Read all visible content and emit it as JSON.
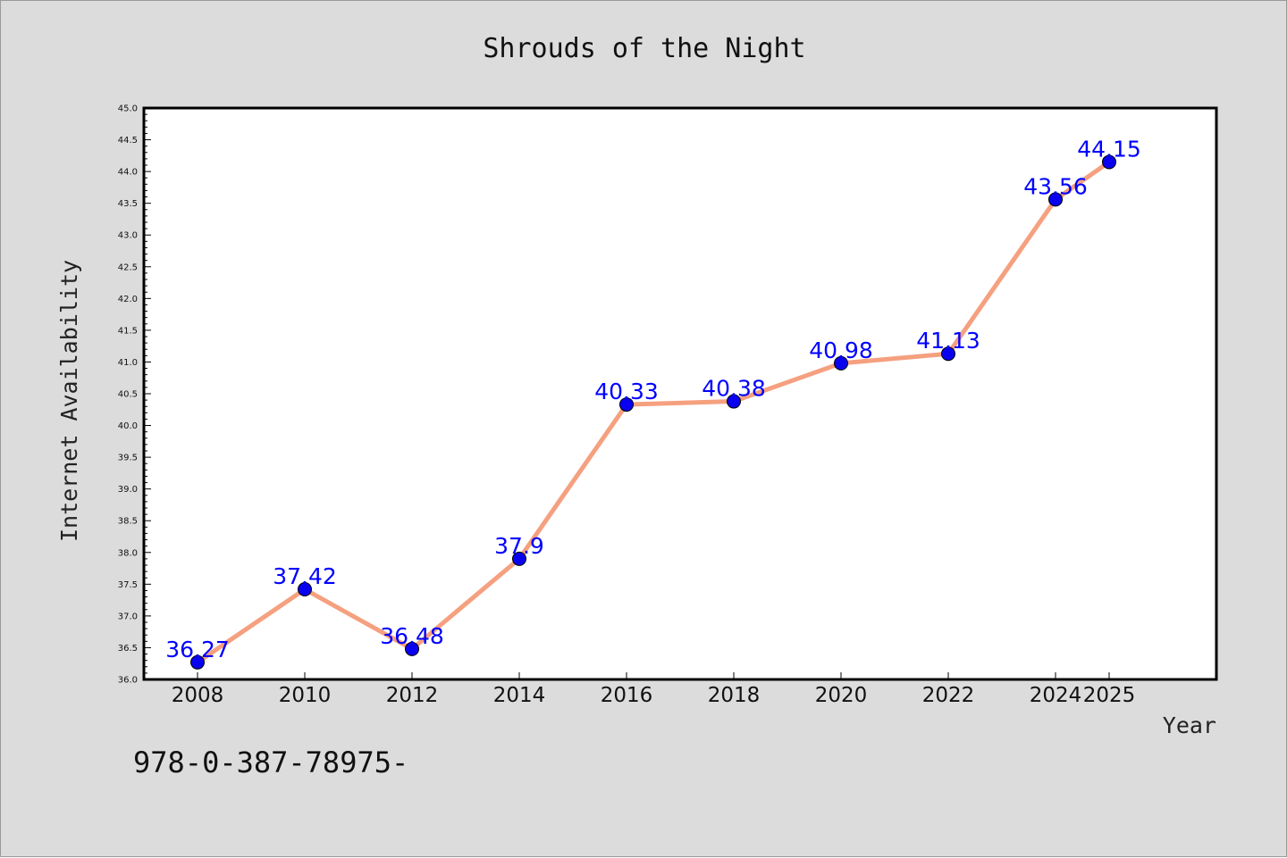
{
  "footer": {
    "code": "978-0-387-78975-"
  },
  "colors": {
    "background": "#dcdcdc",
    "plot_background": "#ffffff",
    "line": "#f5a07f",
    "marker": "#0a00f0",
    "label": "#0000ff"
  },
  "chart_data": {
    "type": "line",
    "title": "Shrouds of the Night",
    "xlabel": "Year",
    "ylabel": "Internet Availability",
    "x": [
      "2008",
      "2010",
      "2012",
      "2014",
      "2016",
      "2018",
      "2020",
      "2022",
      "2024",
      "2025"
    ],
    "series": [
      {
        "values": [
          36.27,
          37.42,
          36.48,
          37.9,
          40.33,
          40.38,
          40.98,
          41.13,
          43.56,
          44.15
        ],
        "data_labels": [
          "36.27",
          "37.42",
          "36.48",
          "37.9",
          "40.33",
          "40.38",
          "40.98",
          "41.13",
          "43.56",
          "44.15"
        ]
      }
    ],
    "ylim": [
      36.0,
      45.0
    ],
    "yticks": [
      "36.0",
      "36.5",
      "37.0",
      "37.5",
      "38.0",
      "38.5",
      "39.0",
      "39.5",
      "40.0",
      "40.5",
      "41.0",
      "41.5",
      "42.0",
      "42.5",
      "43.0",
      "43.5",
      "44.0",
      "44.5",
      "45.0"
    ],
    "grid": false,
    "legend": "none"
  }
}
